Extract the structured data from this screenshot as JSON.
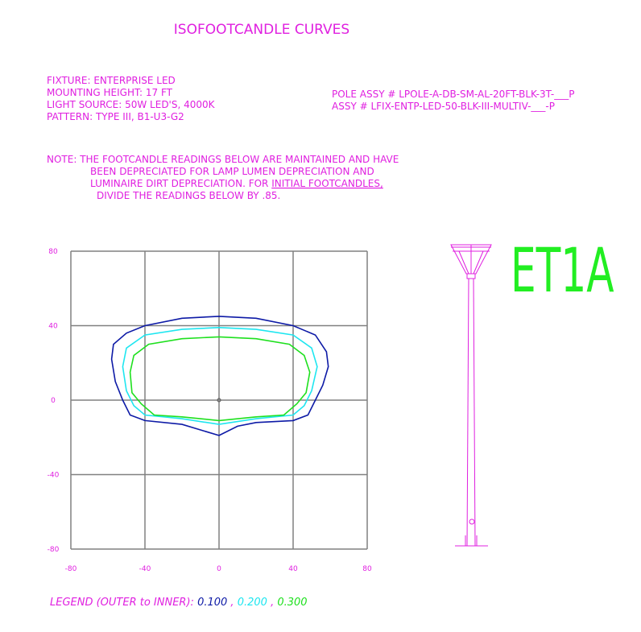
{
  "chart_data": {
    "type": "contour",
    "title": "ISOFOOTCANDLE CURVES",
    "fixture_lines": [
      "FIXTURE: ENTERPRISE LED",
      "MOUNTING HEIGHT: 17 FT",
      "LIGHT SOURCE: 50W LED'S, 4000K",
      "PATTERN: TYPE III, B1-U3-G2"
    ],
    "assembly_lines": [
      "POLE ASSY # LPOLE-A-DB-SM-AL-20FT-BLK-3T-___P",
      "ASSY # LFIX-ENTP-LED-50-BLK-III-MULTIV-___-P"
    ],
    "note_lines": [
      "NOTE: THE FOOTCANDLE READINGS BELOW ARE MAINTAINED AND HAVE",
      "BEEN DEPRECIATED FOR LAMP LUMEN DEPRECIATION AND",
      "LUMINAIRE DIRT DEPRECIATION. FOR",
      "DIVIDE THE READINGS BELOW BY .85."
    ],
    "note_underlined": "INITIAL FOOTCANDLES,",
    "fixture_code": "ET1A",
    "legend_title": "LEGEND (OUTER to INNER):",
    "legend_separator": ",",
    "xlim": [
      -80,
      80
    ],
    "ylim": [
      -80,
      80
    ],
    "xticks": [
      -80,
      -40,
      0,
      40,
      80
    ],
    "yticks": [
      -80,
      -40,
      0,
      40,
      80
    ],
    "grid": true,
    "series": [
      {
        "name": "0.100",
        "color": "#0d1aa6",
        "x": [
          -58,
          -57,
          -50,
          -40,
          -20,
          0,
          20,
          40,
          52,
          58,
          59,
          56,
          52,
          48,
          40,
          20,
          10,
          0,
          -10,
          -20,
          -40,
          -48,
          -52,
          -56
        ],
        "y": [
          22,
          30,
          36,
          40,
          44,
          45,
          44,
          40,
          35,
          26,
          18,
          8,
          0,
          -8,
          -11,
          -12,
          -14,
          -19,
          -16,
          -13,
          -11,
          -8,
          0,
          10
        ]
      },
      {
        "name": "0.200",
        "color": "#1ee6f0",
        "x": [
          -52,
          -50,
          -40,
          -20,
          0,
          20,
          40,
          50,
          53,
          50,
          46,
          40,
          20,
          0,
          -20,
          -40,
          -46,
          -50
        ],
        "y": [
          18,
          28,
          35,
          38,
          39,
          38,
          35,
          28,
          18,
          5,
          -3,
          -8,
          -10,
          -13,
          -10,
          -8,
          -3,
          5
        ]
      },
      {
        "name": "0.300",
        "color": "#1ee01e",
        "x": [
          -48,
          -46,
          -38,
          -20,
          0,
          20,
          38,
          46,
          49,
          47,
          42,
          35,
          20,
          0,
          -20,
          -35,
          -42,
          -47
        ],
        "y": [
          15,
          24,
          30,
          33,
          34,
          33,
          30,
          24,
          15,
          4,
          -2,
          -8,
          -9,
          -11,
          -9,
          -8,
          -2,
          4
        ]
      }
    ]
  }
}
